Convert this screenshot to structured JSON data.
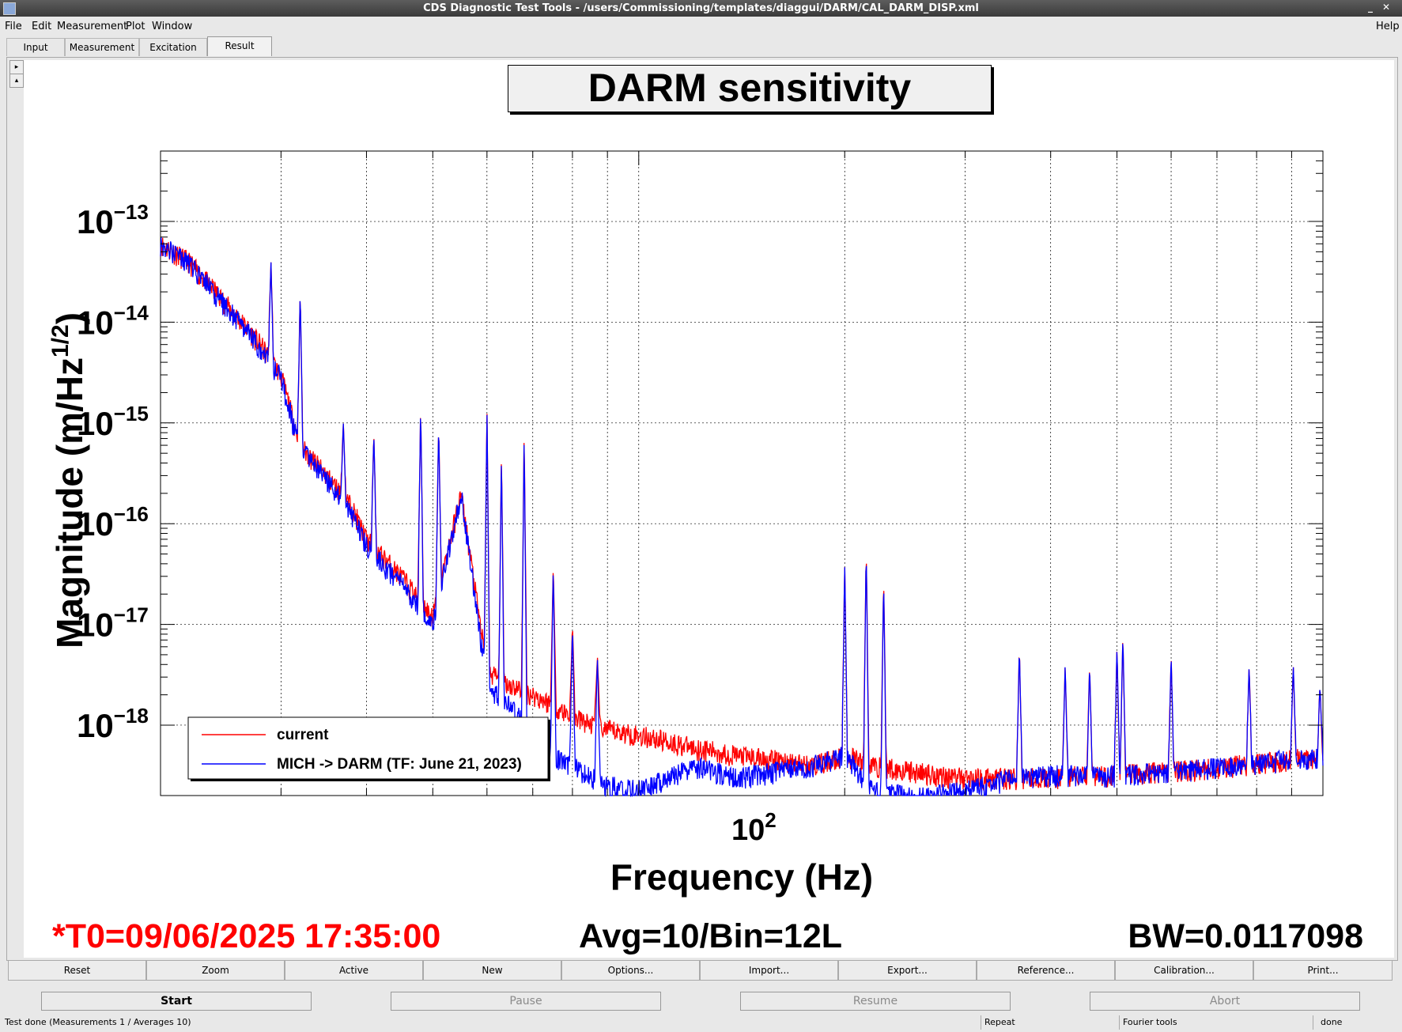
{
  "window": {
    "title": "CDS Diagnostic Test Tools - /users/Commissioning/templates/diaggui/DARM/CAL_DARM_DISP.xml"
  },
  "menu": {
    "file": "File",
    "edit": "Edit",
    "measurement": "Measurement",
    "plot": "Plot",
    "window": "Window",
    "help": "Help"
  },
  "tabs": [
    {
      "label": "Input"
    },
    {
      "label": "Measurement"
    },
    {
      "label": "Excitation"
    },
    {
      "label": "Result"
    }
  ],
  "plot": {
    "title": "DARM sensitivity"
  },
  "chart_data": {
    "type": "line",
    "title": "DARM sensitivity",
    "xlabel": "Frequency (Hz)",
    "ylabel": "Magnitude (m/Hz^1/2)",
    "x_scale": "log",
    "y_scale": "log",
    "xlim": [
      20,
      1000
    ],
    "ylim": [
      2e-19,
      5e-13
    ],
    "x_tick_labels": [
      "10^2"
    ],
    "y_tick_labels": [
      "10^-13",
      "10^-14",
      "10^-15",
      "10^-16",
      "10^-17",
      "10^-18"
    ],
    "grid": true,
    "legend_position": "bottom-left",
    "series": [
      {
        "name": "current",
        "color": "#ff0000",
        "x": [
          20,
          22,
          25,
          28,
          30,
          32,
          35,
          38,
          40,
          45,
          50,
          55,
          60,
          65,
          70,
          75,
          80,
          90,
          100,
          110,
          120,
          140,
          160,
          180,
          200,
          220,
          250,
          300,
          350,
          400,
          450,
          500,
          600,
          700,
          800,
          900,
          1000
        ],
        "y": [
          6e-14,
          4e-14,
          1.5e-14,
          6e-15,
          3e-15,
          6e-16,
          3e-16,
          1.5e-16,
          7e-17,
          3e-17,
          1.2e-17,
          2e-16,
          3.5e-18,
          2.5e-18,
          2e-18,
          1.6e-18,
          1.2e-18,
          9e-19,
          8e-19,
          7e-19,
          6e-19,
          5e-19,
          4.5e-19,
          4e-19,
          5e-19,
          4e-19,
          3.5e-19,
          3e-19,
          3e-19,
          3e-19,
          3.2e-19,
          3.2e-19,
          3.5e-19,
          3.8e-19,
          4.2e-19,
          4.6e-19,
          5e-19
        ]
      },
      {
        "name": "MICH -> DARM (TF: June 21, 2023)",
        "color": "#0000ff",
        "x": [
          20,
          22,
          25,
          28,
          30,
          32,
          35,
          38,
          40,
          45,
          50,
          55,
          60,
          65,
          70,
          75,
          80,
          90,
          100,
          110,
          120,
          140,
          160,
          180,
          200,
          220,
          250,
          300,
          350,
          400,
          450,
          500,
          600,
          700,
          800,
          900,
          1000
        ],
        "y": [
          6e-14,
          4e-14,
          1.4e-14,
          5.5e-15,
          2.8e-15,
          5.5e-16,
          2.8e-16,
          1.3e-16,
          6e-17,
          2.5e-17,
          1e-17,
          2e-16,
          2.5e-18,
          1.5e-18,
          8e-19,
          5e-19,
          4e-19,
          2.5e-19,
          2.3e-19,
          3e-19,
          4e-19,
          3e-19,
          3.5e-19,
          4e-19,
          5e-19,
          2.2e-19,
          2e-19,
          2.2e-19,
          3e-19,
          3.2e-19,
          3.2e-19,
          3.2e-19,
          3.5e-19,
          3.8e-19,
          4.2e-19,
          4.6e-19,
          5e-19
        ]
      }
    ],
    "peaks": [
      {
        "x": 29,
        "y": 4e-14
      },
      {
        "x": 32,
        "y": 2e-14
      },
      {
        "x": 37,
        "y": 1e-15
      },
      {
        "x": 41,
        "y": 8e-16
      },
      {
        "x": 48,
        "y": 1.5e-15
      },
      {
        "x": 51,
        "y": 1e-15
      },
      {
        "x": 60,
        "y": 1.5e-15
      },
      {
        "x": 63,
        "y": 5e-16
      },
      {
        "x": 68,
        "y": 8e-16
      },
      {
        "x": 75,
        "y": 4e-17
      },
      {
        "x": 80,
        "y": 1e-17
      },
      {
        "x": 87,
        "y": 5e-18
      },
      {
        "x": 200,
        "y": 4e-17
      },
      {
        "x": 215,
        "y": 6e-17
      },
      {
        "x": 228,
        "y": 3e-17
      },
      {
        "x": 360,
        "y": 6e-18
      },
      {
        "x": 420,
        "y": 4e-18
      },
      {
        "x": 456,
        "y": 4e-18
      },
      {
        "x": 500,
        "y": 6e-18
      },
      {
        "x": 510,
        "y": 8e-18
      },
      {
        "x": 600,
        "y": 5e-18
      },
      {
        "x": 780,
        "y": 4e-18
      },
      {
        "x": 905,
        "y": 4e-18
      },
      {
        "x": 990,
        "y": 2.5e-18
      }
    ]
  },
  "axis_text": {
    "ylabel_main": "Magnitude (m/Hz",
    "ylabel_sup": "1/2",
    "ylabel_close": ")",
    "xlabel": "Frequency (Hz)",
    "xtick_base": "10",
    "xtick_exp": "2",
    "ytick_base": "10",
    "ytick_exps": [
      "−13",
      "−14",
      "−15",
      "−16",
      "−17",
      "−18"
    ]
  },
  "legend": {
    "items": [
      "current",
      "MICH -> DARM (TF: June 21, 2023)"
    ]
  },
  "status": {
    "t0": "*T0=09/06/2025 17:35:00",
    "avg": "Avg=10/Bin=12L",
    "bw": "BW=0.0117098"
  },
  "buttons": [
    "Reset",
    "Zoom",
    "Active",
    "New",
    "Options...",
    "Import...",
    "Export...",
    "Reference...",
    "Calibration...",
    "Print..."
  ],
  "controls": {
    "start": "Start",
    "pause": "Pause",
    "resume": "Resume",
    "abort": "Abort"
  },
  "statusbar": {
    "message": "Test done (Measurements 1 / Averages 10)",
    "repeat": "Repeat",
    "tools": "Fourier tools",
    "state": "done"
  },
  "colors": {
    "current": "#ff0000",
    "mich": "#0000ff",
    "t0_text": "#ff0000"
  }
}
